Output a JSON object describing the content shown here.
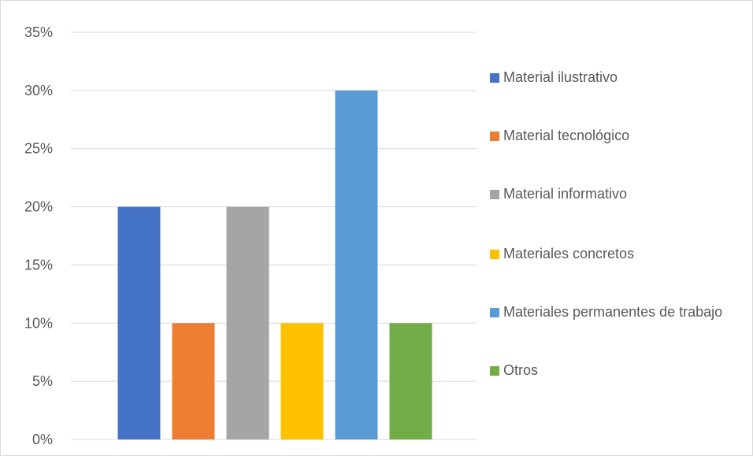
{
  "chart_data": {
    "type": "bar",
    "title": "",
    "xlabel": "",
    "ylabel": "",
    "ylim": [
      0,
      35
    ],
    "yticks": [
      "0%",
      "5%",
      "10%",
      "15%",
      "20%",
      "25%",
      "30%",
      "35%"
    ],
    "unit": "%",
    "grid": true,
    "legend_position": "right",
    "series": [
      {
        "name": "Material ilustrativo",
        "value": 20,
        "color": "#4472C4"
      },
      {
        "name": "Material tecnológico",
        "value": 10,
        "color": "#ED7D31"
      },
      {
        "name": "Material informativo",
        "value": 20,
        "color": "#A5A5A5"
      },
      {
        "name": "Materiales concretos",
        "value": 10,
        "color": "#FFC000"
      },
      {
        "name": "Materiales permanentes de trabajo",
        "value": 30,
        "color": "#5B9BD5"
      },
      {
        "name": "Otros",
        "value": 10,
        "color": "#70AD47"
      }
    ]
  }
}
